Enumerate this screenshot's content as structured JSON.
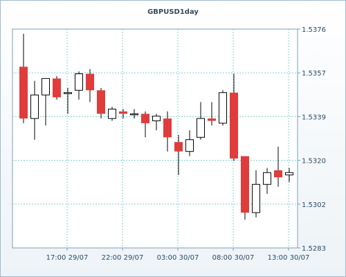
{
  "chart_data": {
    "type": "candlestick",
    "title": "GBPUSD1day",
    "y_ticks": [
      "1.5376",
      "1.5357",
      "1.5339",
      "1.5320",
      "1.5302",
      "1.5283"
    ],
    "ylim": [
      1.5283,
      1.5376
    ],
    "x_ticks": [
      "17:00 29/07",
      "22:00 29/07",
      "03:00 30/07",
      "08:00 30/07",
      "13:00 30/07"
    ],
    "x_tick_candle_index": [
      4,
      9,
      14,
      19,
      24
    ],
    "grid": true,
    "colors": {
      "up": "#ffffff",
      "down": "#e03c3c",
      "outline": "#000000",
      "grid": "#7fd0d8"
    },
    "candles": [
      {
        "open": 1.536,
        "high": 1.5374,
        "low": 1.5336,
        "close": 1.5338
      },
      {
        "open": 1.5338,
        "high": 1.5354,
        "low": 1.5329,
        "close": 1.5348
      },
      {
        "open": 1.5348,
        "high": 1.5355,
        "low": 1.5335,
        "close": 1.5355
      },
      {
        "open": 1.5355,
        "high": 1.5356,
        "low": 1.5346,
        "close": 1.5347
      },
      {
        "open": 1.5349,
        "high": 1.5351,
        "low": 1.534,
        "close": 1.5349
      },
      {
        "open": 1.535,
        "high": 1.5358,
        "low": 1.5346,
        "close": 1.5357
      },
      {
        "open": 1.5357,
        "high": 1.5359,
        "low": 1.5345,
        "close": 1.535
      },
      {
        "open": 1.535,
        "high": 1.5351,
        "low": 1.5338,
        "close": 1.534
      },
      {
        "open": 1.5338,
        "high": 1.5343,
        "low": 1.5337,
        "close": 1.5342
      },
      {
        "open": 1.5341,
        "high": 1.5342,
        "low": 1.5338,
        "close": 1.534
      },
      {
        "open": 1.534,
        "high": 1.5342,
        "low": 1.5338,
        "close": 1.534
      },
      {
        "open": 1.534,
        "high": 1.5341,
        "low": 1.533,
        "close": 1.5336
      },
      {
        "open": 1.5337,
        "high": 1.534,
        "low": 1.5333,
        "close": 1.5339
      },
      {
        "open": 1.5338,
        "high": 1.5341,
        "low": 1.5324,
        "close": 1.533
      },
      {
        "open": 1.5328,
        "high": 1.5331,
        "low": 1.5314,
        "close": 1.5324
      },
      {
        "open": 1.5324,
        "high": 1.5333,
        "low": 1.5322,
        "close": 1.5329
      },
      {
        "open": 1.533,
        "high": 1.5345,
        "low": 1.5329,
        "close": 1.5338
      },
      {
        "open": 1.5338,
        "high": 1.5345,
        "low": 1.5335,
        "close": 1.5337
      },
      {
        "open": 1.5336,
        "high": 1.535,
        "low": 1.5335,
        "close": 1.5349
      },
      {
        "open": 1.5349,
        "high": 1.5357,
        "low": 1.532,
        "close": 1.5321
      },
      {
        "open": 1.5322,
        "high": 1.5322,
        "low": 1.5295,
        "close": 1.5298
      },
      {
        "open": 1.5298,
        "high": 1.5316,
        "low": 1.5296,
        "close": 1.531
      },
      {
        "open": 1.531,
        "high": 1.5317,
        "low": 1.5306,
        "close": 1.5315
      },
      {
        "open": 1.5316,
        "high": 1.5326,
        "low": 1.5309,
        "close": 1.5313
      },
      {
        "open": 1.5314,
        "high": 1.5317,
        "low": 1.5311,
        "close": 1.5315
      }
    ]
  }
}
